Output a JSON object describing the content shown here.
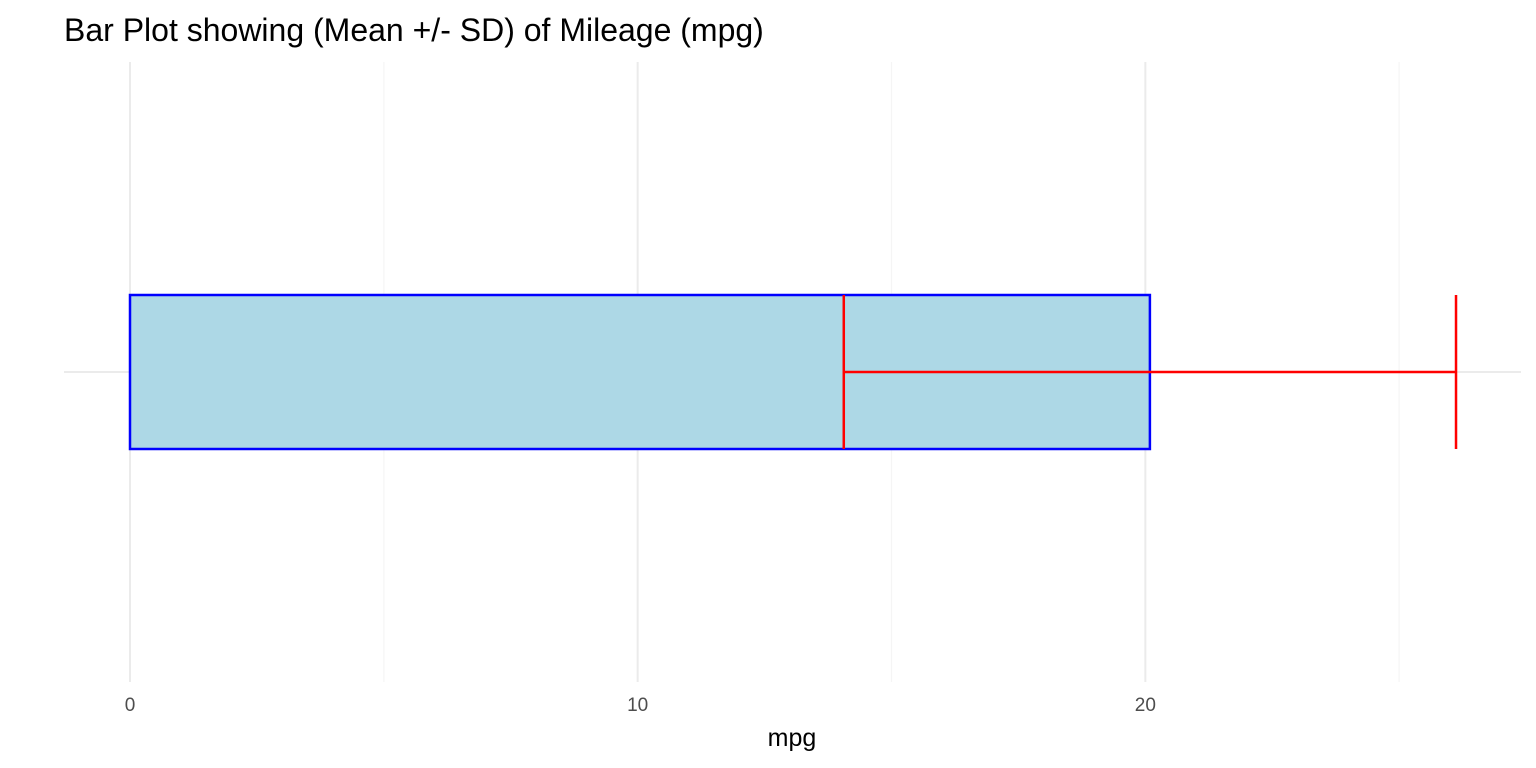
{
  "chart_data": {
    "type": "bar",
    "orientation": "horizontal",
    "title": "Bar Plot showing (Mean +/- SD) of Mileage (mpg)",
    "xlabel": "mpg",
    "ylabel": "",
    "xlim": [
      -1.3,
      27.4
    ],
    "x_ticks": [
      0,
      10,
      20
    ],
    "x_tick_labels": [
      "0",
      "10",
      "20"
    ],
    "bars": [
      {
        "value": 20.09,
        "error_low": 14.06,
        "error_high": 26.12
      }
    ],
    "grid": true,
    "colors": {
      "bar_fill": "#add8e6",
      "bar_border": "#0000ff",
      "error_bar": "#ff0000",
      "grid_major": "#ebebeb",
      "grid_minor": "#f5f5f5"
    }
  }
}
